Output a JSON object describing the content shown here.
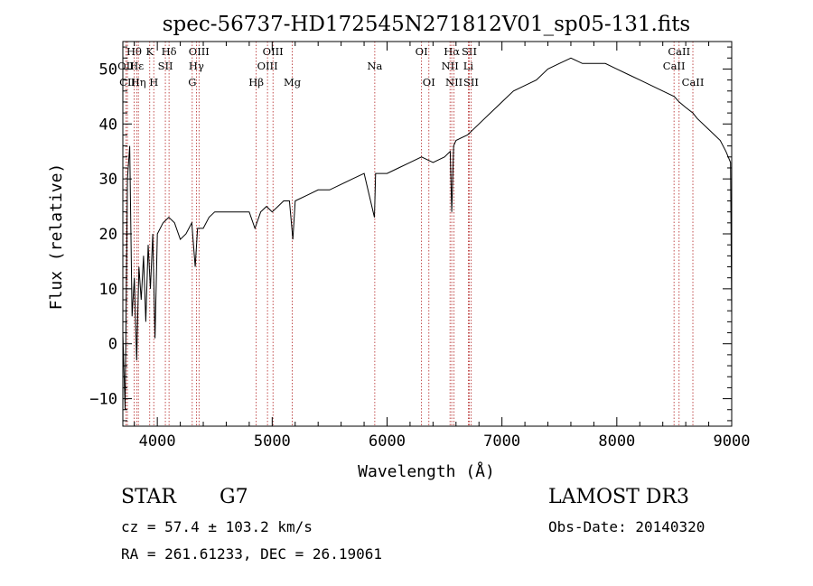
{
  "chart_data": {
    "type": "line",
    "title": "spec-56737-HD172545N271812V01_sp05-131.fits",
    "xlabel": "Wavelength (Å)",
    "ylabel": "Flux (relative)",
    "xlim": [
      3700,
      9000
    ],
    "ylim": [
      -15,
      55
    ],
    "xticks": [
      4000,
      5000,
      6000,
      7000,
      8000,
      9000
    ],
    "yticks": [
      -10,
      0,
      10,
      20,
      30,
      40,
      50
    ],
    "x_tick_labels": [
      "4000",
      "5000",
      "6000",
      "7000",
      "8000",
      "9000"
    ],
    "y_tick_labels": [
      "−10",
      "0",
      "10",
      "20",
      "30",
      "40",
      "50"
    ],
    "series": [
      {
        "name": "flux",
        "color": "#000000",
        "x": [
          3700,
          3720,
          3740,
          3760,
          3780,
          3800,
          3820,
          3840,
          3860,
          3880,
          3900,
          3920,
          3940,
          3960,
          3980,
          4000,
          4050,
          4100,
          4150,
          4200,
          4250,
          4300,
          4330,
          4350,
          4400,
          4450,
          4500,
          4600,
          4700,
          4800,
          4850,
          4900,
          4950,
          5000,
          5050,
          5100,
          5150,
          5180,
          5200,
          5300,
          5400,
          5500,
          5600,
          5700,
          5800,
          5890,
          5900,
          5950,
          6000,
          6100,
          6200,
          6300,
          6400,
          6500,
          6550,
          6563,
          6580,
          6600,
          6700,
          6800,
          6900,
          7000,
          7100,
          7200,
          7300,
          7400,
          7500,
          7600,
          7700,
          7800,
          7900,
          8000,
          8100,
          8200,
          8300,
          8400,
          8500,
          8542,
          8600,
          8662,
          8700,
          8800,
          8900,
          8950,
          8990,
          9000
        ],
        "values": [
          2,
          -12,
          30,
          36,
          5,
          12,
          -3,
          14,
          8,
          16,
          4,
          18,
          10,
          20,
          1,
          20,
          22,
          23,
          22,
          19,
          20,
          22,
          14,
          21,
          21,
          23,
          24,
          24,
          24,
          24,
          21,
          24,
          25,
          24,
          25,
          26,
          26,
          19,
          26,
          27,
          28,
          28,
          29,
          30,
          31,
          23,
          31,
          31,
          31,
          32,
          33,
          34,
          33,
          34,
          35,
          24,
          36,
          37,
          38,
          40,
          42,
          44,
          46,
          47,
          48,
          50,
          51,
          52,
          51,
          51,
          51,
          50,
          49,
          48,
          47,
          46,
          45,
          44,
          43,
          42,
          41,
          39,
          37,
          35,
          33,
          5
        ]
      }
    ],
    "lines": [
      {
        "name": "Hθ",
        "x": 3798,
        "row": 0
      },
      {
        "name": "OII",
        "x": 3727,
        "row": 1
      },
      {
        "name": "Hε",
        "x": 3820,
        "row": 1
      },
      {
        "name": "CII",
        "x": 3740,
        "row": 2
      },
      {
        "name": "Hη",
        "x": 3835,
        "row": 2
      },
      {
        "name": "K",
        "x": 3934,
        "row": 0
      },
      {
        "name": "H",
        "x": 3969,
        "row": 2
      },
      {
        "name": "SII",
        "x": 4070,
        "row": 1
      },
      {
        "name": "Hδ",
        "x": 4102,
        "row": 0
      },
      {
        "name": "OIII",
        "x": 4363,
        "row": 0
      },
      {
        "name": "Hγ",
        "x": 4340,
        "row": 1
      },
      {
        "name": "G",
        "x": 4304,
        "row": 2
      },
      {
        "name": "Hβ",
        "x": 4861,
        "row": 2
      },
      {
        "name": "OIII",
        "x": 5007,
        "row": 0
      },
      {
        "name": "OIII",
        "x": 4959,
        "row": 1
      },
      {
        "name": "Mg",
        "x": 5175,
        "row": 2
      },
      {
        "name": "Na",
        "x": 5893,
        "row": 1
      },
      {
        "name": "OI",
        "x": 6300,
        "row": 0
      },
      {
        "name": "OI",
        "x": 6364,
        "row": 2
      },
      {
        "name": "Hα",
        "x": 6563,
        "row": 0
      },
      {
        "name": "NII",
        "x": 6548,
        "row": 1
      },
      {
        "name": "NII",
        "x": 6583,
        "row": 2
      },
      {
        "name": "SII",
        "x": 6716,
        "row": 0
      },
      {
        "name": "Li",
        "x": 6707,
        "row": 1
      },
      {
        "name": "SII",
        "x": 6731,
        "row": 2
      },
      {
        "name": "CaII",
        "x": 8542,
        "row": 0
      },
      {
        "name": "CaII",
        "x": 8498,
        "row": 1
      },
      {
        "name": "CaII",
        "x": 8662,
        "row": 2
      }
    ],
    "line_color": "#b22222",
    "grid": false,
    "legend": "none"
  },
  "info": {
    "class": "STAR",
    "subclass": "G7",
    "survey": "LAMOST DR3",
    "cz": "cz = 57.4 ± 103.2 km/s",
    "obs_date": "Obs-Date: 20140320",
    "coords": "RA = 261.61233, DEC =  26.19061"
  }
}
